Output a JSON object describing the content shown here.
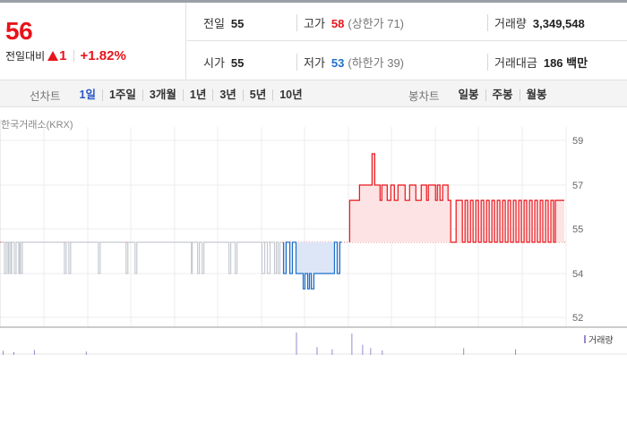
{
  "quote": {
    "price": "56",
    "change_label": "전일대비",
    "change_value": "1",
    "change_percent": "+1.82%",
    "prev_close": {
      "label": "전일",
      "value": "55"
    },
    "high": {
      "label": "고가",
      "value": "58",
      "limit_label": "(상한가 71)"
    },
    "volume": {
      "label": "거래량",
      "value": "3,349,548"
    },
    "open": {
      "label": "시가",
      "value": "55"
    },
    "low": {
      "label": "저가",
      "value": "53",
      "limit_label": "(하한가 39)"
    },
    "amount": {
      "label": "거래대금",
      "value": "186 백만"
    }
  },
  "line_tabs": {
    "label": "선차트",
    "items": [
      "1일",
      "1주일",
      "3개월",
      "1년",
      "3년",
      "5년",
      "10년"
    ],
    "active": 0
  },
  "candle_tabs": {
    "label": "봉차트",
    "items": [
      "일봉",
      "주봉",
      "월봉"
    ]
  },
  "source": "한국거래소(KRX)",
  "colors": {
    "up": "#e8141b",
    "down": "#1d6fc9",
    "neutral": "#c5cad1",
    "volume": "#9b88cf"
  },
  "chart_data": {
    "type": "line",
    "series_name": "price",
    "y_ticks": [
      59,
      57,
      55,
      54,
      52
    ],
    "ylim": [
      51.8,
      59.2
    ],
    "baseline": 55,
    "grid": true,
    "segments": [
      {
        "color": "neutral",
        "points": [
          [
            0,
            55
          ],
          [
            4,
            55
          ],
          [
            4,
            54
          ],
          [
            6,
            54
          ],
          [
            6,
            55
          ],
          [
            8,
            55
          ],
          [
            8,
            54
          ],
          [
            9,
            54
          ],
          [
            9,
            55
          ],
          [
            11,
            55
          ],
          [
            11,
            54
          ],
          [
            12,
            54
          ],
          [
            12,
            55
          ],
          [
            15,
            55
          ],
          [
            15,
            54
          ],
          [
            17,
            54
          ],
          [
            17,
            55
          ],
          [
            20,
            55
          ],
          [
            20,
            54
          ],
          [
            21,
            54
          ],
          [
            21,
            55
          ],
          [
            22,
            55
          ],
          [
            22,
            54
          ],
          [
            24,
            54
          ],
          [
            24,
            55
          ],
          [
            71,
            55
          ],
          [
            71,
            54
          ],
          [
            73,
            54
          ],
          [
            73,
            55
          ],
          [
            76,
            55
          ],
          [
            76,
            54
          ],
          [
            78,
            54
          ],
          [
            78,
            55
          ],
          [
            109,
            55
          ],
          [
            109,
            54
          ],
          [
            111,
            54
          ],
          [
            111,
            55
          ],
          [
            140,
            55
          ],
          [
            140,
            54
          ],
          [
            142,
            54
          ],
          [
            142,
            55
          ],
          [
            150,
            55
          ],
          [
            150,
            54
          ],
          [
            152,
            54
          ],
          [
            152,
            55
          ],
          [
            213,
            55
          ],
          [
            213,
            54
          ],
          [
            214,
            54
          ],
          [
            214,
            55
          ],
          [
            220,
            55
          ],
          [
            220,
            54
          ],
          [
            222,
            54
          ],
          [
            222,
            55
          ],
          [
            225,
            55
          ],
          [
            225,
            54
          ],
          [
            227,
            54
          ],
          [
            227,
            55
          ],
          [
            255,
            55
          ],
          [
            255,
            54
          ],
          [
            257,
            54
          ],
          [
            257,
            55
          ],
          [
            262,
            55
          ],
          [
            262,
            54
          ],
          [
            264,
            54
          ],
          [
            264,
            55
          ],
          [
            292,
            55
          ],
          [
            292,
            54
          ],
          [
            295,
            54
          ],
          [
            295,
            55
          ],
          [
            298,
            55
          ],
          [
            298,
            54
          ],
          [
            301,
            54
          ],
          [
            301,
            55
          ],
          [
            306,
            55
          ],
          [
            306,
            54
          ],
          [
            308,
            54
          ],
          [
            308,
            55
          ],
          [
            310,
            55
          ],
          [
            310,
            54
          ],
          [
            312,
            54
          ],
          [
            312,
            55
          ],
          [
            314,
            55
          ]
        ]
      },
      {
        "color": "down",
        "points": [
          [
            316,
            55
          ],
          [
            316,
            54
          ],
          [
            319,
            54
          ],
          [
            319,
            55
          ],
          [
            323,
            55
          ],
          [
            323,
            54
          ],
          [
            326,
            54
          ],
          [
            326,
            55
          ],
          [
            330,
            55
          ],
          [
            330,
            54
          ],
          [
            338,
            54
          ],
          [
            338,
            53.3
          ],
          [
            340,
            53.3
          ],
          [
            340,
            54
          ],
          [
            343,
            54
          ],
          [
            343,
            53.3
          ],
          [
            345,
            53.3
          ],
          [
            345,
            54
          ],
          [
            347,
            54
          ],
          [
            347,
            53.3
          ],
          [
            350,
            53.3
          ],
          [
            350,
            54
          ],
          [
            373,
            54
          ],
          [
            373,
            55
          ],
          [
            376,
            55
          ],
          [
            376,
            54
          ],
          [
            379,
            54
          ],
          [
            379,
            55
          ],
          [
            381,
            55
          ]
        ]
      },
      {
        "color": "up",
        "points": [
          [
            390,
            55
          ],
          [
            390,
            56.3
          ],
          [
            401,
            56.3
          ],
          [
            401,
            57
          ],
          [
            415,
            57
          ],
          [
            415,
            58.4
          ],
          [
            418,
            58.4
          ],
          [
            418,
            57
          ],
          [
            424,
            57
          ],
          [
            424,
            56.3
          ],
          [
            426,
            56.3
          ],
          [
            426,
            57
          ],
          [
            432,
            57
          ],
          [
            432,
            56.3
          ],
          [
            436,
            56.3
          ],
          [
            436,
            57
          ],
          [
            440,
            57
          ],
          [
            440,
            56.3
          ],
          [
            444,
            56.3
          ],
          [
            444,
            57
          ],
          [
            452,
            57
          ],
          [
            452,
            56.3
          ],
          [
            457,
            56.3
          ],
          [
            457,
            57
          ],
          [
            464,
            57
          ],
          [
            464,
            56.3
          ],
          [
            470,
            56.3
          ],
          [
            470,
            57
          ],
          [
            476,
            57
          ],
          [
            476,
            56.3
          ],
          [
            478,
            56.3
          ],
          [
            478,
            57
          ],
          [
            486,
            57
          ],
          [
            486,
            56.3
          ],
          [
            488,
            56.3
          ],
          [
            488,
            57
          ],
          [
            491,
            57
          ],
          [
            491,
            56.3
          ],
          [
            494,
            56.3
          ],
          [
            494,
            57
          ],
          [
            500,
            57
          ],
          [
            500,
            56.3
          ],
          [
            503,
            56.3
          ],
          [
            503,
            55
          ],
          [
            509,
            55
          ],
          [
            509,
            56.3
          ],
          [
            516,
            56.3
          ],
          [
            516,
            55
          ],
          [
            519,
            55
          ],
          [
            519,
            56.3
          ],
          [
            522,
            56.3
          ],
          [
            522,
            55
          ],
          [
            525,
            55
          ],
          [
            525,
            56.3
          ],
          [
            528,
            56.3
          ],
          [
            528,
            55
          ],
          [
            531,
            55
          ],
          [
            531,
            56.3
          ],
          [
            534,
            56.3
          ],
          [
            534,
            55
          ],
          [
            537,
            55
          ],
          [
            537,
            56.3
          ],
          [
            540,
            56.3
          ],
          [
            540,
            55
          ],
          [
            543,
            55
          ],
          [
            543,
            56.3
          ],
          [
            546,
            56.3
          ],
          [
            546,
            55
          ],
          [
            549,
            55
          ],
          [
            549,
            56.3
          ],
          [
            552,
            56.3
          ],
          [
            552,
            55
          ],
          [
            555,
            55
          ],
          [
            555,
            56.3
          ],
          [
            558,
            56.3
          ],
          [
            558,
            55
          ],
          [
            561,
            55
          ],
          [
            561,
            56.3
          ],
          [
            564,
            56.3
          ],
          [
            564,
            55
          ],
          [
            567,
            55
          ],
          [
            567,
            56.3
          ],
          [
            570,
            56.3
          ],
          [
            570,
            55
          ],
          [
            573,
            55
          ],
          [
            573,
            56.3
          ],
          [
            576,
            56.3
          ],
          [
            576,
            55
          ],
          [
            579,
            55
          ],
          [
            579,
            56.3
          ],
          [
            582,
            56.3
          ],
          [
            582,
            55
          ],
          [
            585,
            55
          ],
          [
            585,
            56.3
          ],
          [
            588,
            56.3
          ],
          [
            588,
            55
          ],
          [
            591,
            55
          ],
          [
            591,
            56.3
          ],
          [
            594,
            56.3
          ],
          [
            594,
            55
          ],
          [
            597,
            55
          ],
          [
            597,
            56.3
          ],
          [
            600,
            56.3
          ],
          [
            600,
            55
          ],
          [
            603,
            55
          ],
          [
            603,
            56.3
          ],
          [
            606,
            56.3
          ],
          [
            606,
            55
          ],
          [
            609,
            55
          ],
          [
            609,
            56.3
          ],
          [
            612,
            56.3
          ],
          [
            612,
            55
          ],
          [
            615,
            55
          ],
          [
            615,
            56.3
          ],
          [
            618,
            56.3
          ],
          [
            618,
            55
          ],
          [
            620,
            55
          ],
          [
            620,
            56.3
          ],
          [
            630,
            56.3
          ]
        ]
      }
    ],
    "volume": {
      "label": "거래량",
      "bars": [
        {
          "x": 2,
          "v": 0.18
        },
        {
          "x": 14,
          "v": 0.12
        },
        {
          "x": 37,
          "v": 0.22
        },
        {
          "x": 95,
          "v": 0.15
        },
        {
          "x": 330,
          "v": 1.0
        },
        {
          "x": 353,
          "v": 0.35
        },
        {
          "x": 370,
          "v": 0.25
        },
        {
          "x": 392,
          "v": 0.95
        },
        {
          "x": 404,
          "v": 0.45
        },
        {
          "x": 413,
          "v": 0.3
        },
        {
          "x": 426,
          "v": 0.2
        },
        {
          "x": 517,
          "v": 0.3
        },
        {
          "x": 575,
          "v": 0.25
        }
      ]
    }
  }
}
